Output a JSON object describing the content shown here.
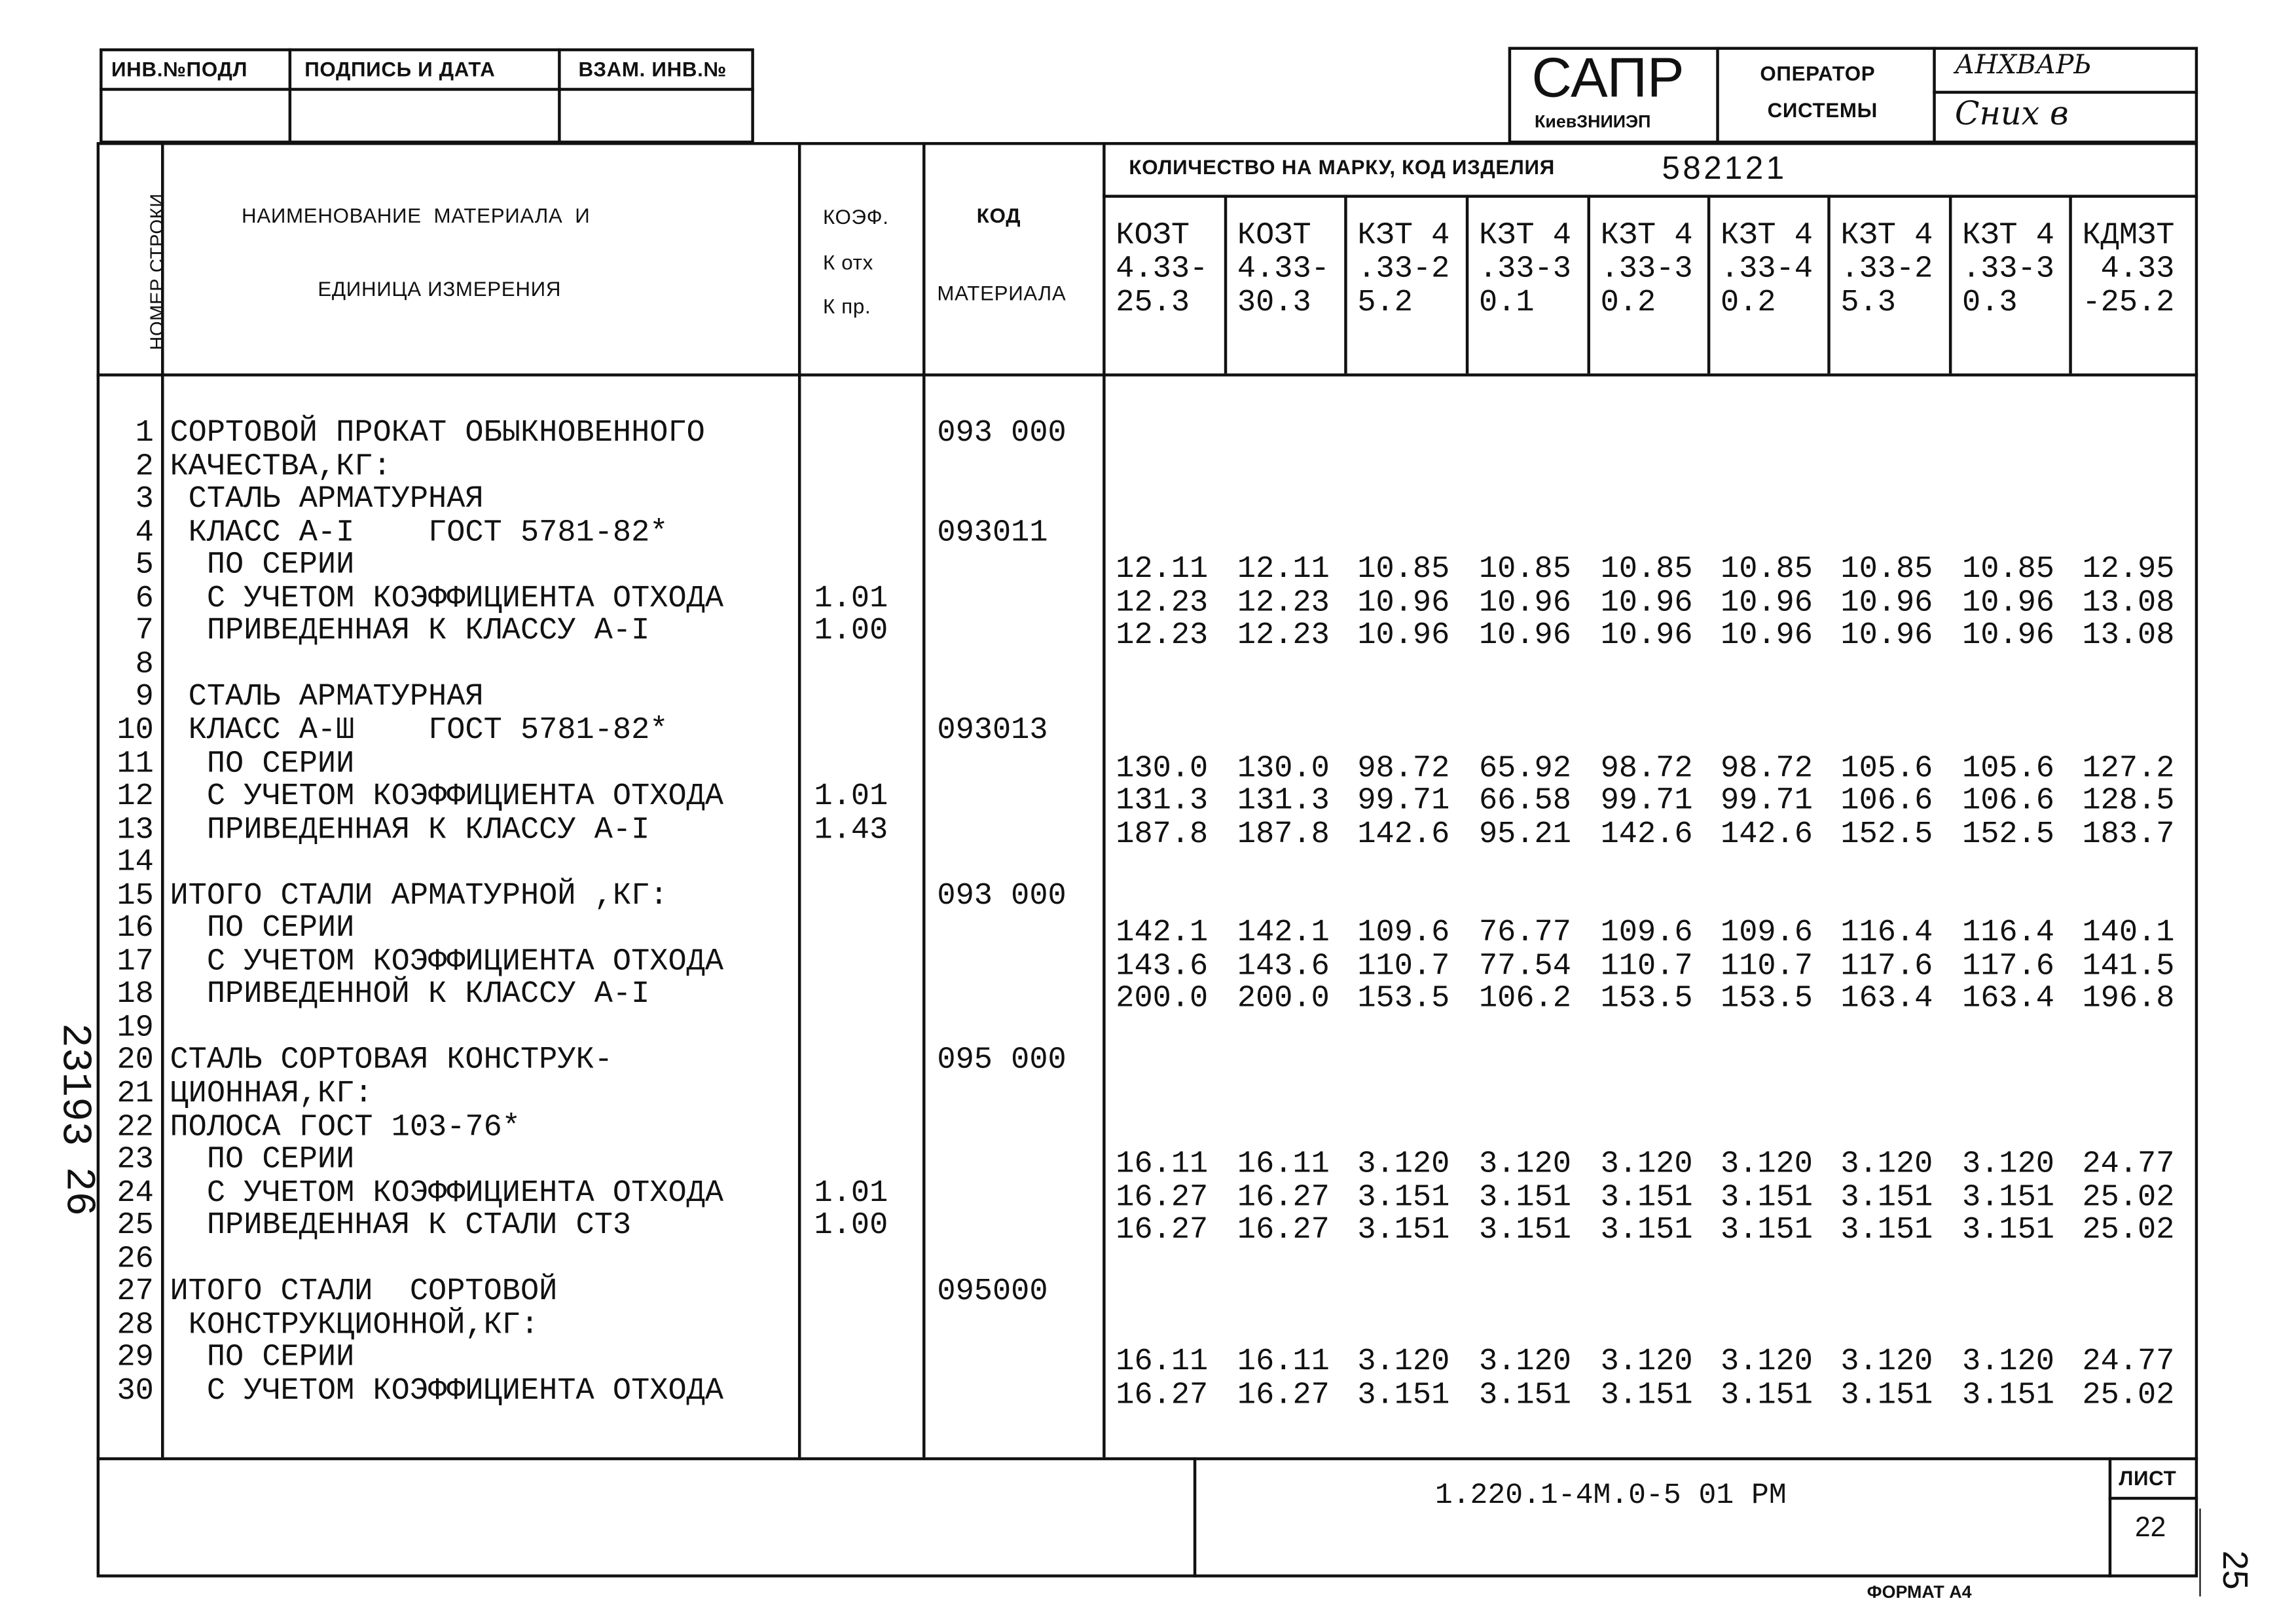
{
  "stamp_top_left": {
    "headers": [
      "ИНВ.№ПОДЛ",
      "ПОДПИСЬ И ДАТА",
      "ВЗАМ. ИНВ.№"
    ]
  },
  "title_block": {
    "brand": "САПР",
    "org": "КиевЗНИИЭП",
    "operator_label_1": "ОПЕРАТОР",
    "operator_label_2": "СИСТЕМЫ",
    "operator_name": "АНХВАРЬ",
    "operator_signature": "Сних в"
  },
  "table_header": {
    "row_number": "НОМЕР СТРОКИ",
    "material_name_1": "НАИМЕНОВАНИЕ  МАТЕРИАЛА  И",
    "material_name_2": "ЕДИНИЦА ИЗМЕРЕНИЯ",
    "coef_1": "КОЭФ.",
    "coef_2": "К отх",
    "coef_3": "К пр.",
    "code_1": "КОД",
    "code_2": "МАТЕРИАЛА",
    "quantity_label": "КОЛИЧЕСТВО НА МАРКУ, КОД ИЗДЕЛИЯ",
    "product_code": "582121",
    "marks": [
      "КОЗТ\n4.33-\n25.3",
      "КОЗТ\n4.33-\n30.3",
      "КЗТ 4\n.33-2\n5.2",
      "КЗТ 4\n.33-3\n0.1",
      "КЗТ 4\n.33-3\n0.2",
      "КЗТ 4\n.33-4\n0.2",
      "КЗТ 4\n.33-2\n5.3",
      "КЗТ 4\n.33-3\n0.3",
      "КДМЗТ\n 4.33\n-25.2"
    ]
  },
  "rows": [
    {
      "n": "1",
      "name": "СОРТОВОЙ ПРОКАТ ОБЫКНОВЕННОГО",
      "coef": "",
      "code": "093 000",
      "values": []
    },
    {
      "n": "2",
      "name": "КАЧЕСТВА,КГ:",
      "coef": "",
      "code": "",
      "values": []
    },
    {
      "n": "3",
      "name": " СТАЛЬ АРМАТУРНАЯ",
      "coef": "",
      "code": "",
      "values": []
    },
    {
      "n": "4",
      "name": " КЛАСС А-I    ГОСТ 5781-82*",
      "coef": "",
      "code": "093011",
      "values": []
    },
    {
      "n": "5",
      "name": "  ПО СЕРИИ",
      "coef": "",
      "code": "",
      "values": [
        "12.11",
        "12.11",
        "10.85",
        "10.85",
        "10.85",
        "10.85",
        "10.85",
        "10.85",
        "12.95"
      ]
    },
    {
      "n": "6",
      "name": "  С УЧЕТОМ КОЭФФИЦИЕНТА ОТХОДА",
      "coef": "1.01",
      "code": "",
      "values": [
        "12.23",
        "12.23",
        "10.96",
        "10.96",
        "10.96",
        "10.96",
        "10.96",
        "10.96",
        "13.08"
      ]
    },
    {
      "n": "7",
      "name": "  ПРИВЕДЕННАЯ К КЛАССУ А-I",
      "coef": "1.00",
      "code": "",
      "values": [
        "12.23",
        "12.23",
        "10.96",
        "10.96",
        "10.96",
        "10.96",
        "10.96",
        "10.96",
        "13.08"
      ]
    },
    {
      "n": "8",
      "name": "",
      "coef": "",
      "code": "",
      "values": []
    },
    {
      "n": "9",
      "name": " СТАЛЬ АРМАТУРНАЯ",
      "coef": "",
      "code": "",
      "values": []
    },
    {
      "n": "10",
      "name": " КЛАСС А-Ш    ГОСТ 5781-82*",
      "coef": "",
      "code": "093013",
      "values": []
    },
    {
      "n": "11",
      "name": "  ПО СЕРИИ",
      "coef": "",
      "code": "",
      "values": [
        "130.0",
        "130.0",
        "98.72",
        "65.92",
        "98.72",
        "98.72",
        "105.6",
        "105.6",
        "127.2"
      ]
    },
    {
      "n": "12",
      "name": "  С УЧЕТОМ КОЭФФИЦИЕНТА ОТХОДА",
      "coef": "1.01",
      "code": "",
      "values": [
        "131.3",
        "131.3",
        "99.71",
        "66.58",
        "99.71",
        "99.71",
        "106.6",
        "106.6",
        "128.5"
      ]
    },
    {
      "n": "13",
      "name": "  ПРИВЕДЕННАЯ К КЛАССУ А-I",
      "coef": "1.43",
      "code": "",
      "values": [
        "187.8",
        "187.8",
        "142.6",
        "95.21",
        "142.6",
        "142.6",
        "152.5",
        "152.5",
        "183.7"
      ]
    },
    {
      "n": "14",
      "name": "",
      "coef": "",
      "code": "",
      "values": []
    },
    {
      "n": "15",
      "name": "ИТОГО СТАЛИ АРМАТУРНОЙ ,КГ:",
      "coef": "",
      "code": "093 000",
      "values": []
    },
    {
      "n": "16",
      "name": "  ПО СЕРИИ",
      "coef": "",
      "code": "",
      "values": [
        "142.1",
        "142.1",
        "109.6",
        "76.77",
        "109.6",
        "109.6",
        "116.4",
        "116.4",
        "140.1"
      ]
    },
    {
      "n": "17",
      "name": "  С УЧЕТОМ КОЭФФИЦИЕНТА ОТХОДА",
      "coef": "",
      "code": "",
      "values": [
        "143.6",
        "143.6",
        "110.7",
        "77.54",
        "110.7",
        "110.7",
        "117.6",
        "117.6",
        "141.5"
      ]
    },
    {
      "n": "18",
      "name": "  ПРИВЕДЕННОЙ К КЛАССУ А-I",
      "coef": "",
      "code": "",
      "values": [
        "200.0",
        "200.0",
        "153.5",
        "106.2",
        "153.5",
        "153.5",
        "163.4",
        "163.4",
        "196.8"
      ]
    },
    {
      "n": "19",
      "name": "",
      "coef": "",
      "code": "",
      "values": []
    },
    {
      "n": "20",
      "name": "СТАЛЬ СОРТОВАЯ КОНСТРУК-",
      "coef": "",
      "code": "095 000",
      "values": []
    },
    {
      "n": "21",
      "name": "ЦИОННАЯ,КГ:",
      "coef": "",
      "code": "",
      "values": []
    },
    {
      "n": "22",
      "name": "ПОЛОСА ГОСТ 103-76*",
      "coef": "",
      "code": "",
      "values": []
    },
    {
      "n": "23",
      "name": "  ПО СЕРИИ",
      "coef": "",
      "code": "",
      "values": [
        "16.11",
        "16.11",
        "3.120",
        "3.120",
        "3.120",
        "3.120",
        "3.120",
        "3.120",
        "24.77"
      ]
    },
    {
      "n": "24",
      "name": "  С УЧЕТОМ КОЭФФИЦИЕНТА ОТХОДА",
      "coef": "1.01",
      "code": "",
      "values": [
        "16.27",
        "16.27",
        "3.151",
        "3.151",
        "3.151",
        "3.151",
        "3.151",
        "3.151",
        "25.02"
      ]
    },
    {
      "n": "25",
      "name": "  ПРИВЕДЕННАЯ К СТАЛИ СТ3",
      "coef": "1.00",
      "code": "",
      "values": [
        "16.27",
        "16.27",
        "3.151",
        "3.151",
        "3.151",
        "3.151",
        "3.151",
        "3.151",
        "25.02"
      ]
    },
    {
      "n": "26",
      "name": "",
      "coef": "",
      "code": "",
      "values": []
    },
    {
      "n": "27",
      "name": "ИТОГО СТАЛИ  СОРТОВОЙ",
      "coef": "",
      "code": "095000",
      "values": []
    },
    {
      "n": "28",
      "name": " КОНСТРУКЦИОННОЙ,КГ:",
      "coef": "",
      "code": "",
      "values": []
    },
    {
      "n": "29",
      "name": "  ПО СЕРИИ",
      "coef": "",
      "code": "",
      "values": [
        "16.11",
        "16.11",
        "3.120",
        "3.120",
        "3.120",
        "3.120",
        "3.120",
        "3.120",
        "24.77"
      ]
    },
    {
      "n": "30",
      "name": "  С УЧЕТОМ КОЭФФИЦИЕНТА ОТХОДА",
      "coef": "",
      "code": "",
      "values": [
        "16.27",
        "16.27",
        "3.151",
        "3.151",
        "3.151",
        "3.151",
        "3.151",
        "3.151",
        "25.02"
      ]
    }
  ],
  "footer": {
    "document_code": "1.220.1-4М.0-5 01 РМ",
    "sheet_label": "ЛИСТ",
    "sheet_number": "22",
    "format": "ФОРМАТ А4",
    "side_inventory": "23193",
    "side_number": "26",
    "page_number": "25"
  }
}
